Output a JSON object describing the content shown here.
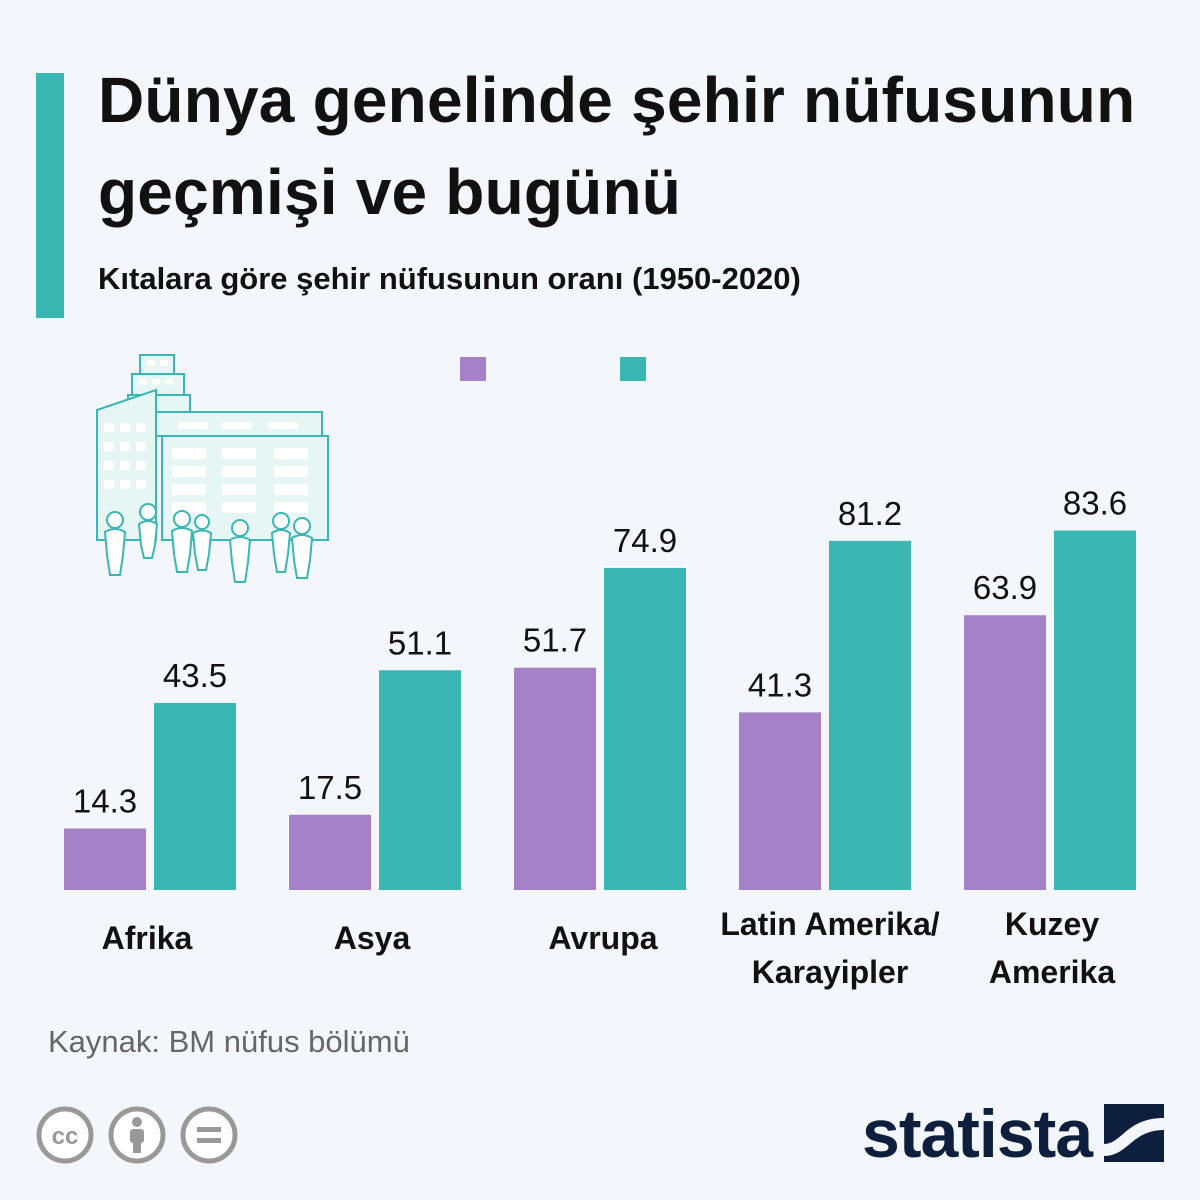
{
  "title": "Dünya genelinde şehir nüfusunun\ngeçmişi ve  bugünü",
  "subtitle": "Kıtalara göre şehir nüfusunun oranı (1950-2020)",
  "legend": {
    "series_1950_label": "",
    "series_2020_label": ""
  },
  "colors": {
    "purple": "#a582c8",
    "teal": "#3ab6b3",
    "background": "#f3f7fb",
    "logo": "#0d1f3c"
  },
  "illustration_icon": "city-buildings-with-people-icon",
  "chart_data": {
    "type": "bar",
    "title": "Kıtalara göre şehir nüfusunun oranı (1950-2020)",
    "categories": [
      "Afrika",
      "Asya",
      "Avrupa",
      "Latin Amerika/\nKarayipler",
      "Kuzey\nAmerika"
    ],
    "series": [
      {
        "values": [
          14.3,
          17.5,
          51.7,
          41.3,
          63.9
        ],
        "color": "#a582c8"
      },
      {
        "values": [
          43.5,
          51.1,
          74.9,
          81.2,
          83.6
        ],
        "color": "#3ab6b3"
      }
    ],
    "ylim": [
      0,
      100
    ],
    "grid": false,
    "data_labels": true
  },
  "source": "Kaynak: BM nüfus bölümü",
  "license_icons": [
    "cc-icon",
    "attribution-icon",
    "no-derivatives-icon"
  ],
  "brand": "statista",
  "brand_icon": "statista-logo-mark-icon"
}
